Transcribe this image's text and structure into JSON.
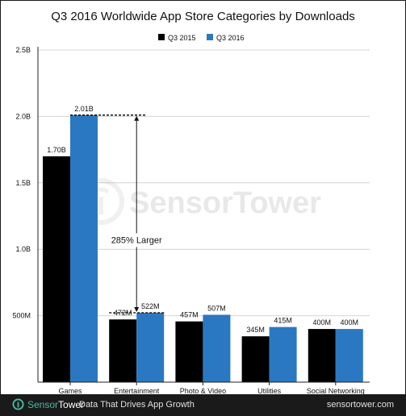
{
  "chart_data": {
    "type": "bar",
    "title": "Q3 2016 Worldwide App Store Categories by Downloads",
    "categories": [
      "Games",
      "Entertainment",
      "Photo & Video",
      "Utilities",
      "Social Networking"
    ],
    "series": [
      {
        "name": "Q3 2015",
        "color": "#000000",
        "values": [
          1.7,
          0.472,
          0.457,
          0.345,
          0.4
        ],
        "labels": [
          "1.70B",
          "472M",
          "457M",
          "345M",
          "400M"
        ]
      },
      {
        "name": "Q3 2016",
        "color": "#2b78c2",
        "values": [
          2.01,
          0.522,
          0.507,
          0.415,
          0.4
        ],
        "labels": [
          "2.01B",
          "522M",
          "507M",
          "415M",
          "400M"
        ]
      }
    ],
    "ylim": [
      0,
      2.5
    ],
    "yticks": [
      {
        "value": 0.5,
        "label": "500M"
      },
      {
        "value": 1.0,
        "label": "1.0B"
      },
      {
        "value": 1.5,
        "label": "1.5B"
      },
      {
        "value": 2.0,
        "label": "2.0B"
      },
      {
        "value": 2.5,
        "label": "2.5B"
      }
    ],
    "grid": true,
    "legend_position": "top-right",
    "annotation": {
      "text": "285% Larger",
      "from_value": 0.522,
      "to_value": 2.01
    }
  },
  "watermark": "SensorTower",
  "footer": {
    "brand_part1": "Sensor",
    "brand_part2": "Tower",
    "tagline": "Data That Drives App Growth",
    "site": "sensortower.com"
  }
}
